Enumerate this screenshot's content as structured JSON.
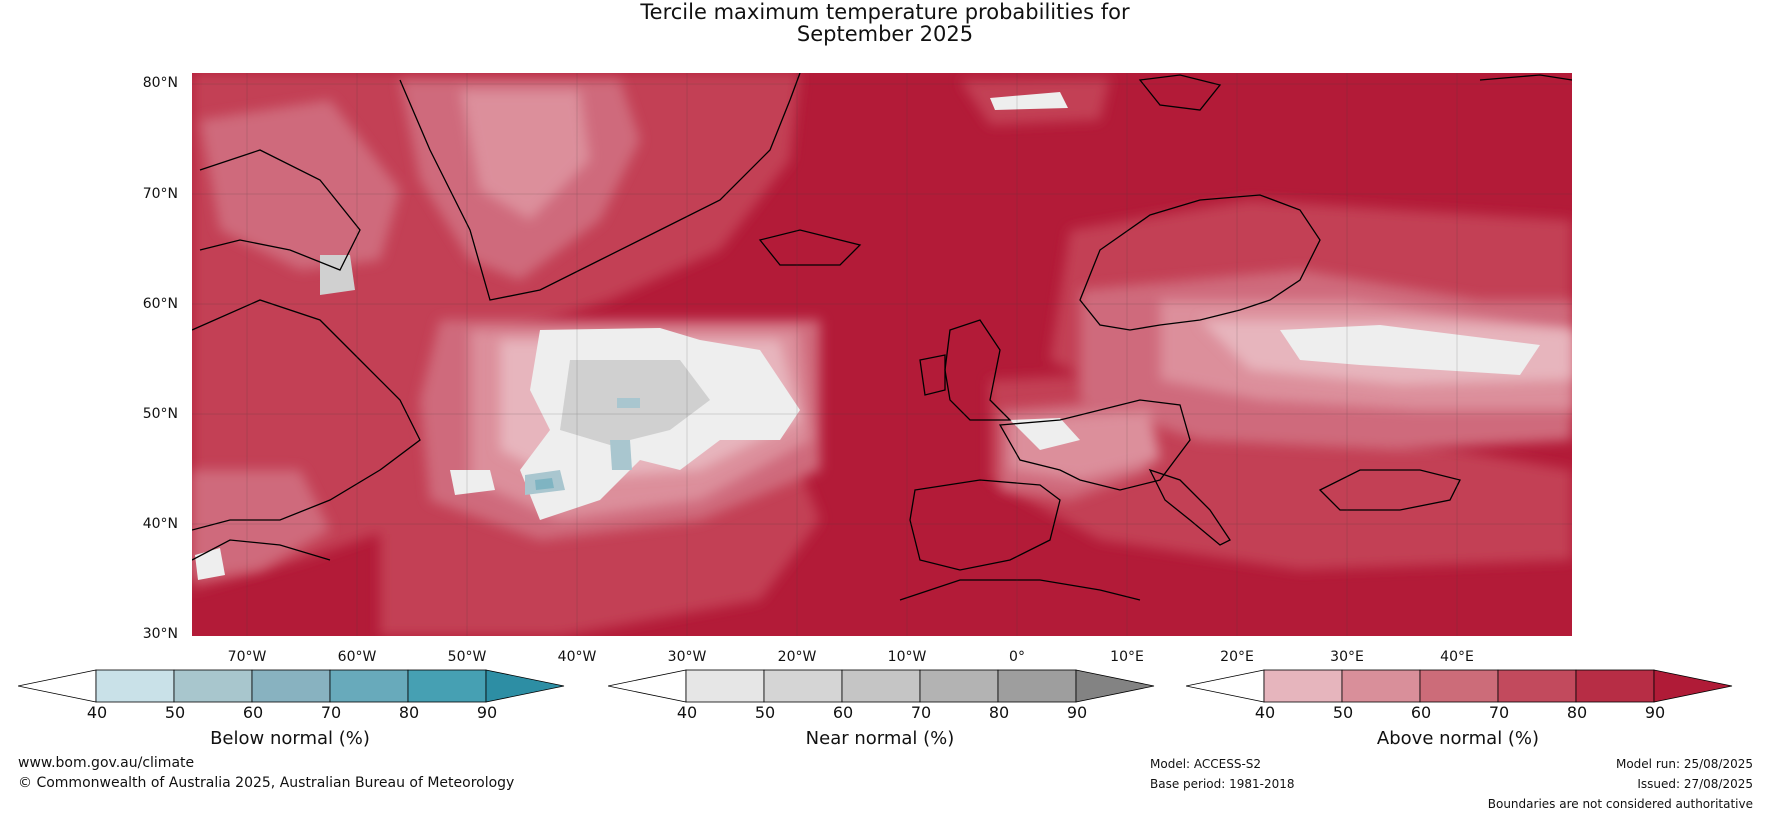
{
  "header": {
    "title_line1": "Tercile maximum temperature probabilities for",
    "title_line2": "September 2025"
  },
  "map": {
    "lat_labels": [
      "80°N",
      "70°N",
      "60°N",
      "50°N",
      "40°N",
      "30°N"
    ],
    "lon_labels": [
      "70°W",
      "60°W",
      "50°W",
      "40°W",
      "30°W",
      "20°W",
      "10°W",
      "0°",
      "10°E",
      "20°E",
      "30°E",
      "40°E"
    ],
    "colors": {
      "above_90": "#b31b38",
      "above_80": "#c33f55",
      "above_70": "#cf6b7b",
      "above_60": "#dc8f9b",
      "above_50": "#e7b5bd",
      "near_40": "#eeeeee",
      "near_60": "#d0d0d0",
      "below_50": "#a9c6cf",
      "below_60": "#7fb4c2",
      "land_outline": "#000000",
      "border": "#7a7a7a"
    }
  },
  "colorbars": [
    {
      "name": "below",
      "title": "Below normal (%)",
      "ticks": [
        "40",
        "50",
        "60",
        "70",
        "80",
        "90"
      ],
      "colors": [
        "#ffffff",
        "#c9e1e8",
        "#a8c6cd",
        "#88b2c0",
        "#68aabb",
        "#46a0b3",
        "#2d8ea4"
      ]
    },
    {
      "name": "near",
      "title": "Near normal (%)",
      "ticks": [
        "40",
        "50",
        "60",
        "70",
        "80",
        "90"
      ],
      "colors": [
        "#ffffff",
        "#e6e6e6",
        "#d5d5d5",
        "#c5c5c5",
        "#b3b3b3",
        "#9e9e9e",
        "#838383"
      ]
    },
    {
      "name": "above",
      "title": "Above normal (%)",
      "ticks": [
        "40",
        "50",
        "60",
        "70",
        "80",
        "90"
      ],
      "colors": [
        "#ffffff",
        "#e6b5bd",
        "#d98f9a",
        "#cc6c79",
        "#c24a5d",
        "#b72d45",
        "#b01b37"
      ]
    }
  ],
  "footer": {
    "website": "www.bom.gov.au/climate",
    "copyright": "© Commonwealth of Australia 2025, Australian Bureau of Meteorology",
    "model": "Model: ACCESS-S2",
    "base_period": "Base period: 1981-2018",
    "model_run": "Model run: 25/08/2025",
    "issued": "Issued: 27/08/2025",
    "disclaimer": "Boundaries are not considered authoritative"
  }
}
